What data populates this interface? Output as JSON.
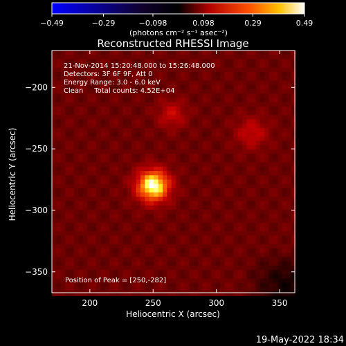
{
  "chart_data": {
    "type": "heatmap",
    "title": "Reconstructed RHESSI Image",
    "xlabel": "Heliocentric X (arcsec)",
    "ylabel": "Heliocentric Y (arcsec)",
    "xlim": [
      170,
      362
    ],
    "ylim": [
      -367,
      -170
    ],
    "x_ticks": [
      200,
      250,
      300,
      350
    ],
    "y_ticks": [
      -200,
      -250,
      -300,
      -350
    ],
    "colorbar": {
      "min": -0.49,
      "max": 0.49,
      "ticks": [
        -0.49,
        -0.29,
        -0.098,
        0.098,
        0.29,
        0.49
      ],
      "tick_labels": [
        "−0.49",
        "−0.29",
        "−0.098",
        "0.098",
        "0.29",
        "0.49"
      ],
      "colormap": [
        "#0000ff",
        "#000000",
        "#c00000",
        "#ff8000",
        "#ffff80",
        "#ffffff"
      ]
    },
    "peak": [
      250,
      -282
    ],
    "background_level": 0.12,
    "sources": [
      {
        "x": 250,
        "y": -280,
        "amplitude": 0.37,
        "sigma": 9
      },
      {
        "x": 265,
        "y": -222,
        "amplitude": 0.1,
        "sigma": 8
      },
      {
        "x": 328,
        "y": -237,
        "amplitude": 0.1,
        "sigma": 9
      }
    ],
    "grid": false
  },
  "annotations": {
    "lines": [
      "21-Nov-2014 15:20:48.000 to 15:26:48.000",
      "Detectors: 3F 6F 9F, Att 0",
      "Energy Range: 3.0 - 6.0 keV",
      "Clean     Total counts: 4.52E+04"
    ],
    "peak_label": "Position of Peak = [250,-282]"
  },
  "colorbar_units": "(photons cm⁻² s⁻¹ asec⁻²)",
  "footer_timestamp": "19-May-2022 18:34"
}
